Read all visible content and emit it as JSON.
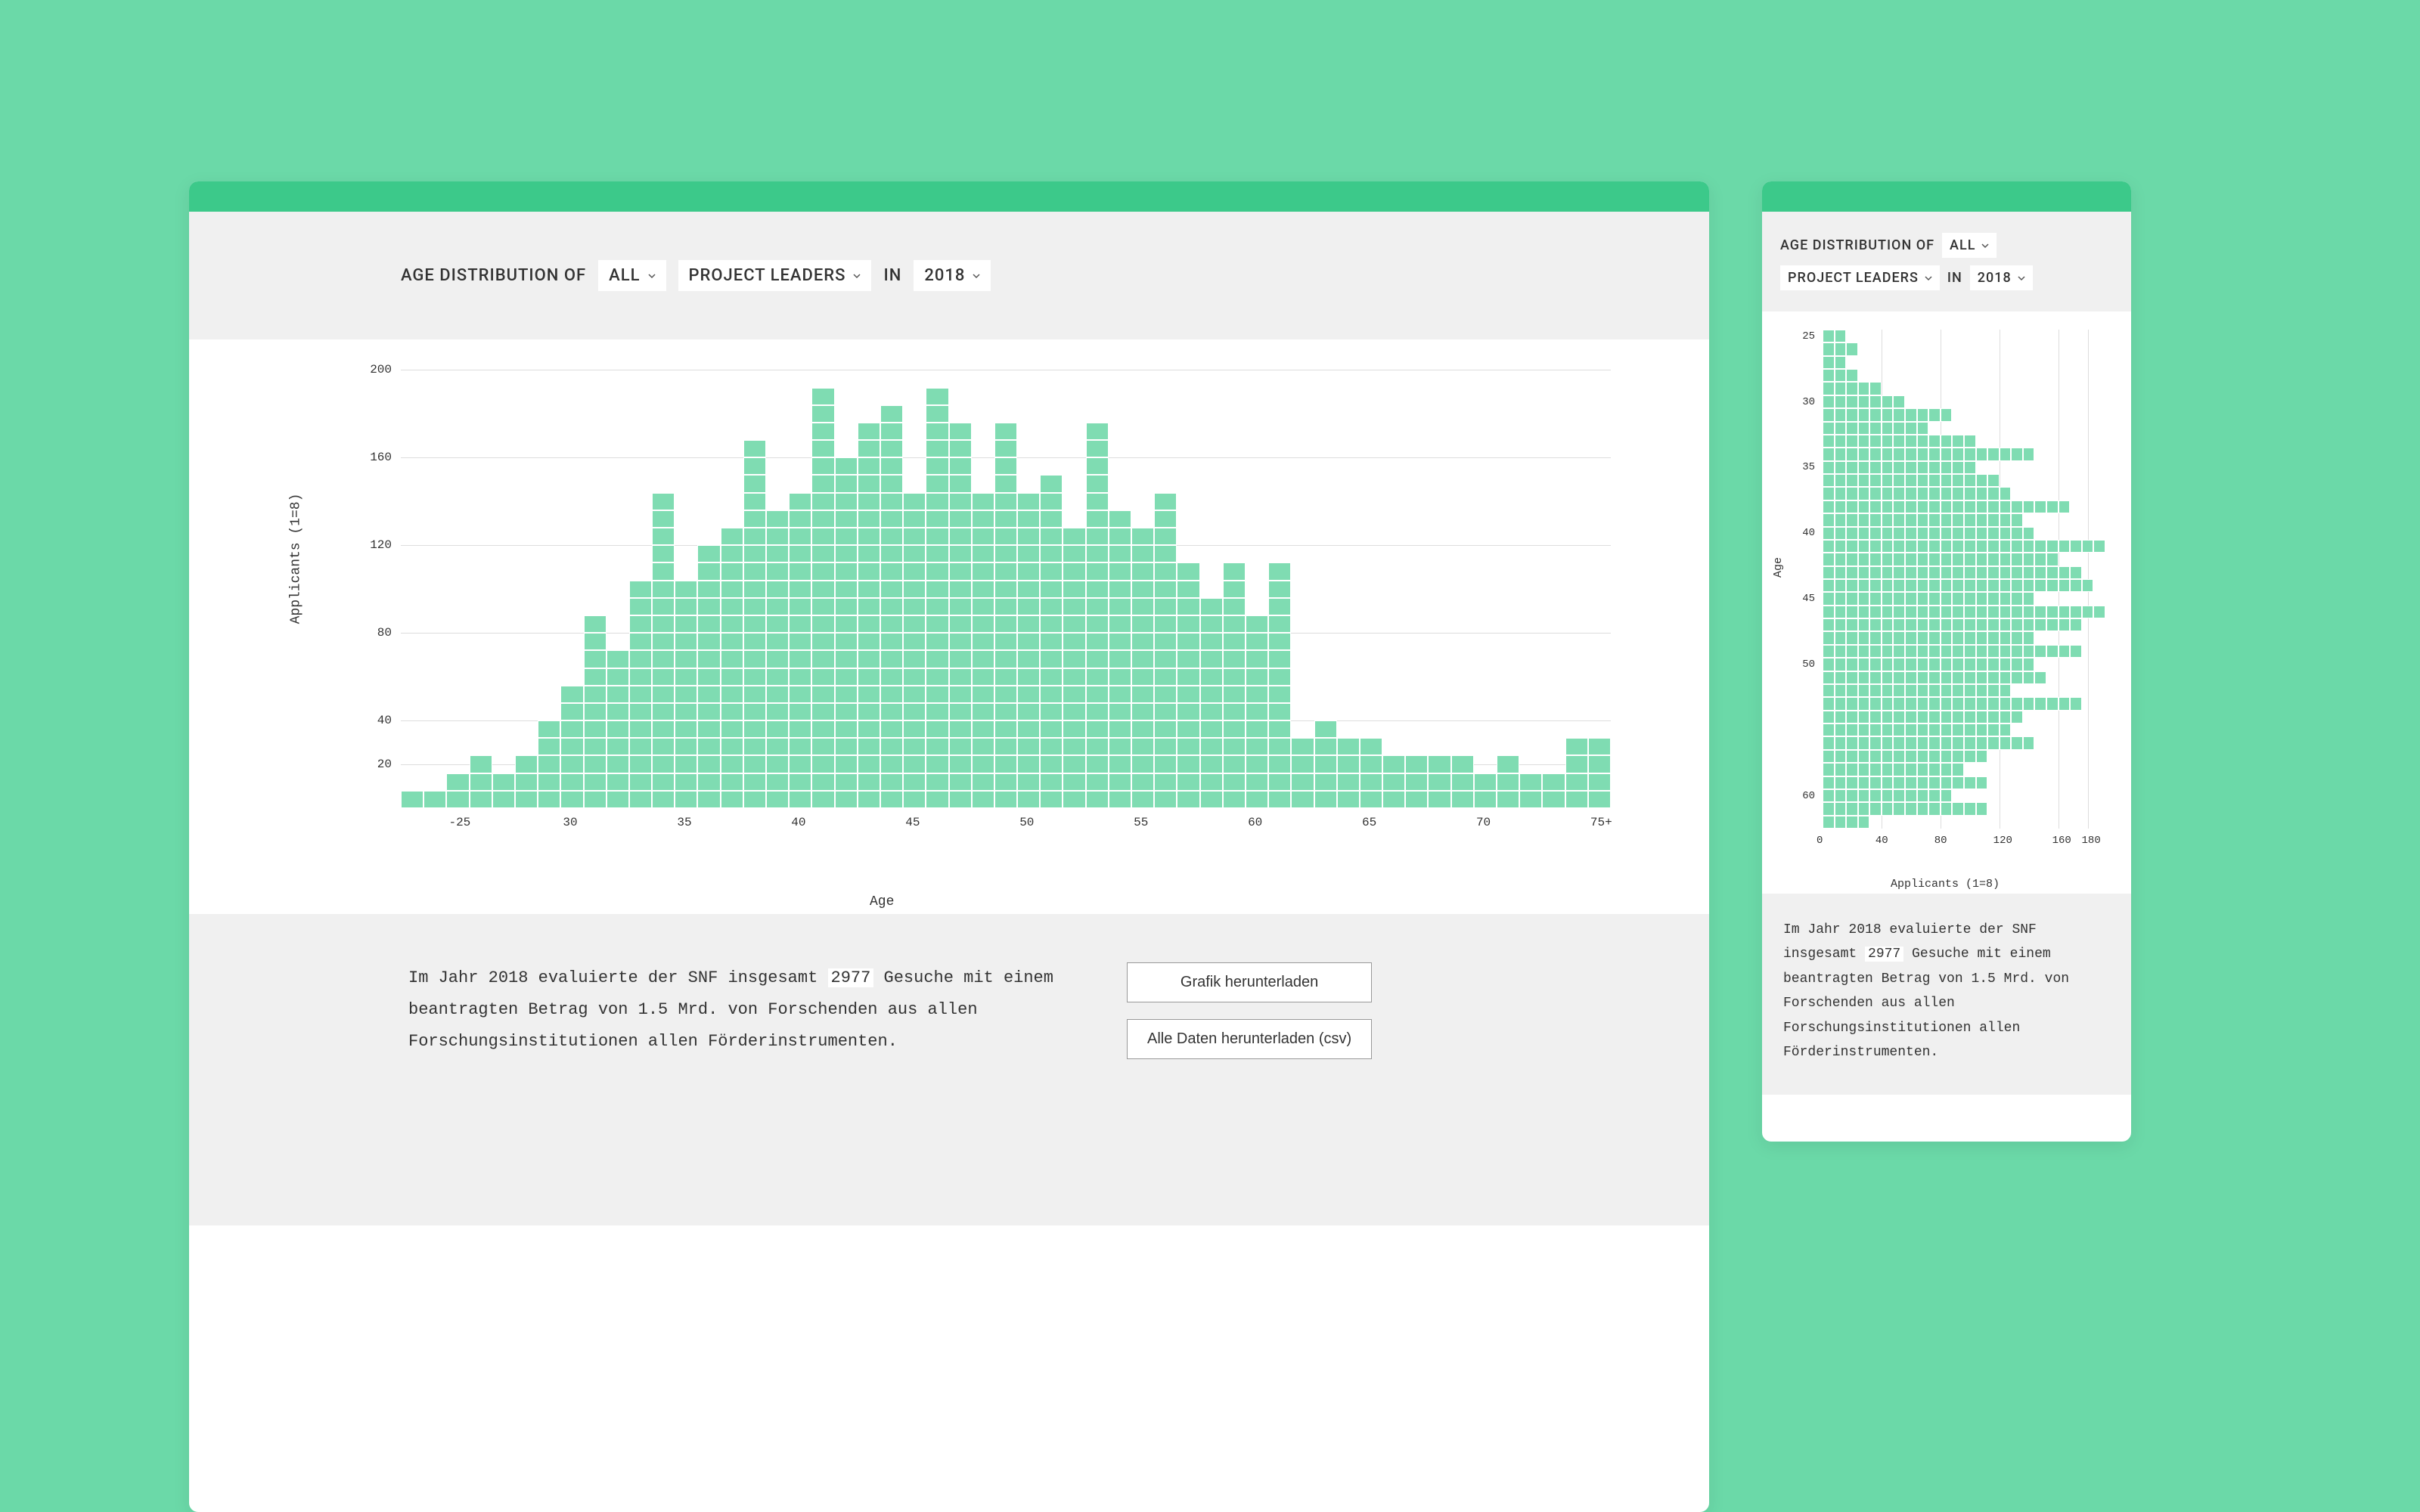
{
  "palette": {
    "page_bg": "#6bd9a8",
    "topbar": "#3cc98a",
    "strip_bg": "#f0f0f0",
    "card_bg": "#ffffff",
    "bar_fill": "#7fdcb2",
    "bar_border": "#ffffff",
    "gridline": "#dddddd",
    "text": "#333333"
  },
  "filters": {
    "title": "AGE DISTRIBUTION OF",
    "all": "ALL",
    "role": "PROJECT LEADERS",
    "in": "IN",
    "year": "2018"
  },
  "chart": {
    "type": "histogram",
    "unit_per_cell": 8,
    "x_label": "Age",
    "y_label": "Applicants (1=8)",
    "x_ticks": [
      "-25",
      "30",
      "35",
      "40",
      "45",
      "50",
      "55",
      "60",
      "65",
      "70",
      "75+"
    ],
    "y_ticks": [
      20,
      40,
      80,
      120,
      160,
      200
    ],
    "y_max": 200,
    "mobile_x_ticks": [
      0,
      40,
      80,
      120,
      160,
      180
    ],
    "mobile_x_max": 190,
    "mobile_y_ticks": [
      25,
      30,
      35,
      40,
      45,
      50,
      60
    ],
    "ages": [
      23,
      24,
      25,
      26,
      27,
      28,
      29,
      30,
      31,
      32,
      33,
      34,
      35,
      36,
      37,
      38,
      39,
      40,
      41,
      42,
      43,
      44,
      45,
      46,
      47,
      48,
      49,
      50,
      51,
      52,
      53,
      54,
      55,
      56,
      57,
      58,
      59,
      60,
      61,
      62,
      63,
      64,
      65,
      66,
      67,
      68,
      69,
      70,
      71,
      72,
      73,
      74,
      75
    ],
    "counts": [
      8,
      8,
      16,
      24,
      16,
      24,
      40,
      56,
      88,
      72,
      104,
      144,
      104,
      120,
      128,
      168,
      136,
      144,
      192,
      160,
      176,
      184,
      144,
      192,
      176,
      144,
      176,
      144,
      152,
      128,
      176,
      136,
      128,
      144,
      112,
      96,
      112,
      88,
      112,
      32,
      40,
      32,
      32,
      24,
      24,
      24,
      24,
      16,
      24,
      16,
      16,
      32,
      32
    ]
  },
  "footer": {
    "summary_pre": "Im Jahr 2018 evaluierte der SNF insgesamt ",
    "highlight": "2977",
    "summary_post": " Gesuche mit einem beantragten Betrag von 1.5 Mrd. von Forschenden aus allen Forschungsinstitutionen allen Förderinstrumenten.",
    "download_chart": "Grafik herunterladen",
    "download_csv": "Alle Daten herunterladen (csv)"
  }
}
